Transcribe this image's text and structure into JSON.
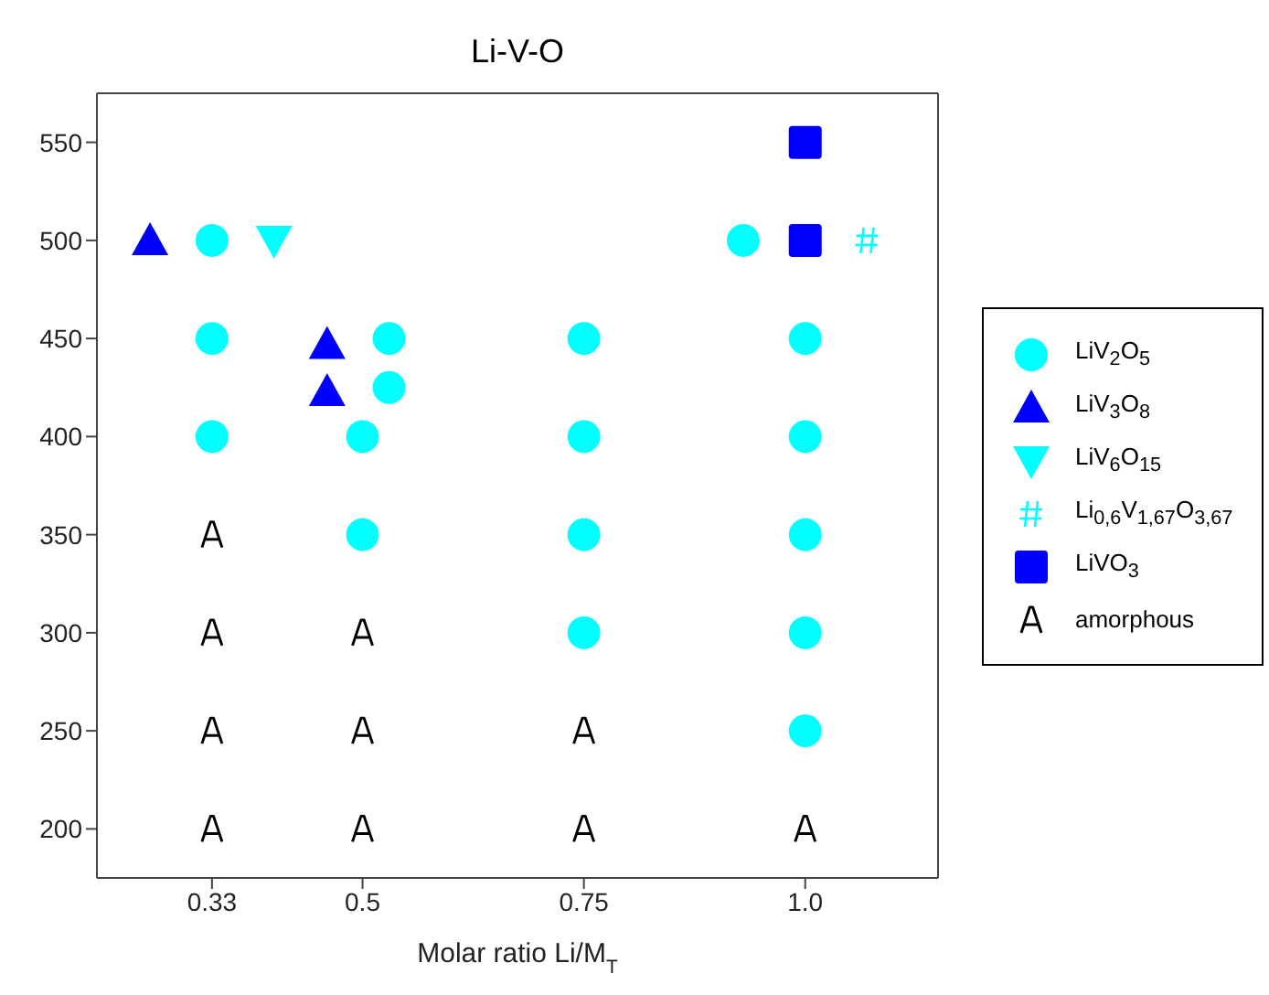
{
  "chart_data": {
    "type": "scatter",
    "title": "Li-V-O",
    "xlabel": "Molar ratio Li/M$_{T}$",
    "xlim": [
      0.2,
      1.15
    ],
    "xticks": [
      {
        "value": 0.33,
        "label": "0.33"
      },
      0.5,
      0.75,
      {
        "value": 1.0,
        "label": "1.0"
      }
    ],
    "ylim": [
      175,
      575
    ],
    "yticks": [
      200,
      250,
      300,
      350,
      400,
      450,
      500,
      550
    ],
    "legend": "right",
    "series": [
      {
        "name": "LiV$_{2}$O$_{5}$",
        "color": "#00ffff",
        "marker": "circle",
        "x": [
          0.33,
          0.33,
          0.33,
          0.53,
          0.53,
          0.5,
          0.5,
          0.75,
          0.75,
          0.75,
          0.75,
          0.93,
          1.0,
          1.0,
          1.0,
          1.0,
          1.0
        ],
        "values": [
          500,
          450,
          400,
          450,
          425,
          400,
          350,
          450,
          400,
          350,
          300,
          500,
          450,
          400,
          350,
          300,
          250
        ]
      },
      {
        "name": "LiV$_{3}$O$_{8}$",
        "color": "#0000ff",
        "marker": "triangle",
        "x": [
          0.26,
          0.46,
          0.46
        ],
        "values": [
          500,
          447,
          423
        ]
      },
      {
        "name": "LiV$_{6}$O$_{15}$",
        "color": "#00ffff",
        "marker": "triangle-down",
        "x": [
          0.4
        ],
        "values": [
          500
        ]
      },
      {
        "name": "Li$_{0,6}$V$_{1,67}$O$_{3,67}$",
        "color": "#00ffff",
        "marker": "cross",
        "x": [
          1.07
        ],
        "values": [
          500
        ]
      },
      {
        "name": "LiVO$_{3}$",
        "color": "#0000ff",
        "marker": "square",
        "x": [
          1.0,
          1.0
        ],
        "values": [
          550,
          500
        ]
      },
      {
        "name": "amorphous",
        "color": "#000000",
        "x": [
          0.33,
          0.33,
          0.33,
          0.33,
          0.5,
          0.5,
          0.5,
          0.75,
          0.75,
          1.0
        ],
        "values": [
          350,
          300,
          250,
          200,
          300,
          250,
          200,
          250,
          200,
          200
        ]
      }
    ]
  }
}
